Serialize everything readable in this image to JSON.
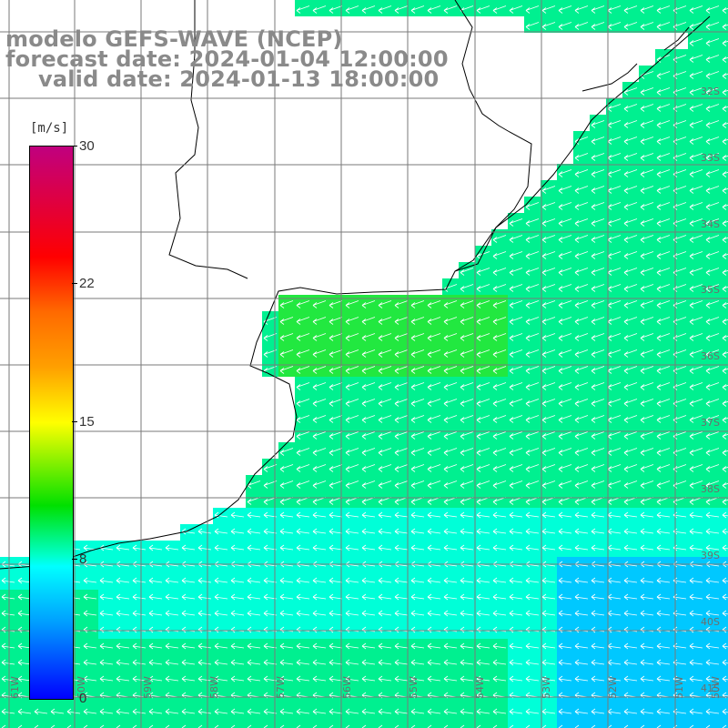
{
  "titles": {
    "line1": "modelo GEFS-WAVE (NCEP)",
    "line2": "forecast date: 2024-01-04 12:00:00",
    "line3": "valid date: 2024-01-13 18:00:00"
  },
  "colorbar": {
    "unit": "[m/s]",
    "ticks": [
      "30",
      "22",
      "15",
      "8",
      "0"
    ],
    "colors": [
      "#c0007f",
      "#ff0000",
      "#ff6a00",
      "#ffa000",
      "#ffff00",
      "#00e000",
      "#00ffff",
      "#00a0ff",
      "#0000ff"
    ]
  },
  "lat_labels": [
    "32S",
    "33S",
    "34S",
    "35S",
    "36S",
    "37S",
    "38S",
    "39S",
    "40S",
    "41S"
  ],
  "lon_labels": [
    "61W",
    "60W",
    "59W",
    "58W",
    "57W",
    "56W",
    "55W",
    "54W",
    "53W",
    "52W",
    "51W",
    "50W"
  ],
  "map": {
    "land_color": "#ffffff",
    "coast_color": "#000000",
    "grid_color": "#7a7a7a",
    "vector_color": "#ffffff",
    "field_colors": [
      "#0a74ff",
      "#00c8ff",
      "#00ffd8",
      "#00f090",
      "#22e840",
      "#00ffff"
    ]
  }
}
